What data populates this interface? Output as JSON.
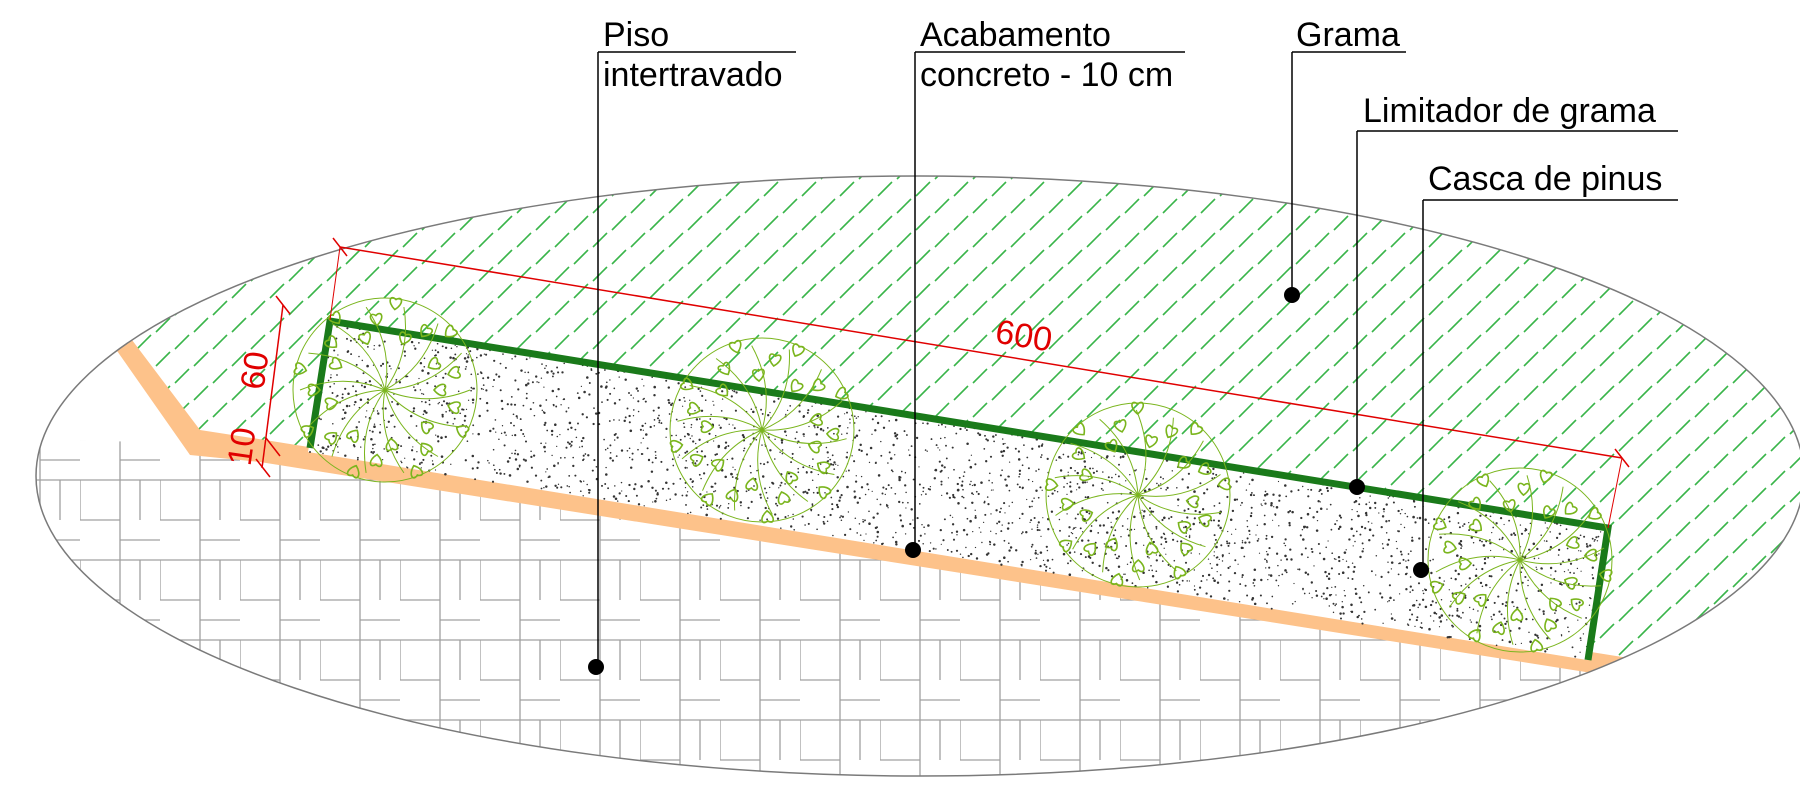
{
  "labels": {
    "piso": [
      "Piso",
      "intertravado"
    ],
    "acabamento": [
      "Acabamento",
      "concreto - 10 cm"
    ],
    "grama": "Grama",
    "limitador": "Limitador de grama",
    "casca": "Casca de pinus"
  },
  "dimensions": {
    "length": "600",
    "bed_width": "60",
    "edge_width": "10"
  },
  "colors": {
    "grass_hatch": "#39b54a",
    "edging": "#1a7a1a",
    "concrete_finish": "#fdc28a",
    "paver_line": "#9a9a9a",
    "dimension": "#e00000",
    "shrub": "#7ab51d",
    "outline": "#7a7a7a"
  }
}
